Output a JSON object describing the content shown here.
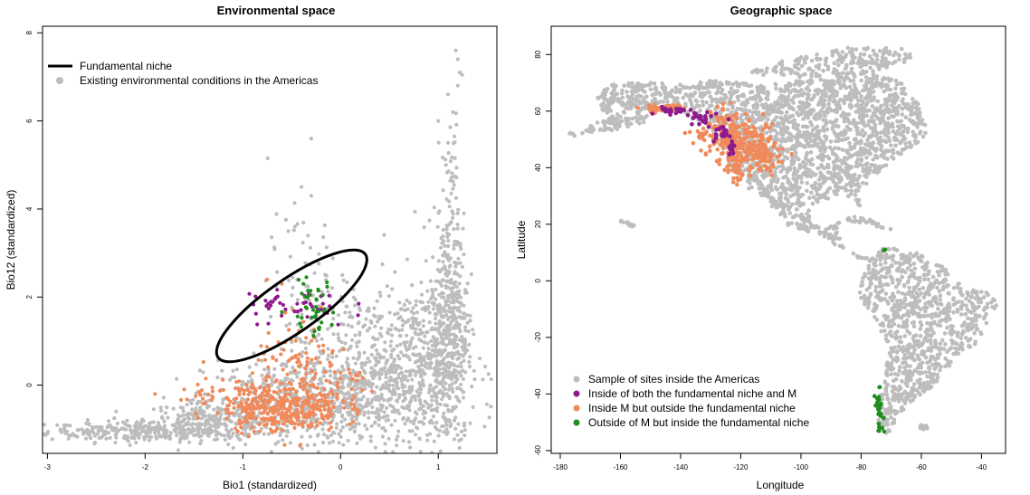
{
  "chart_data": [
    {
      "type": "scatter",
      "title": "Environmental space",
      "xlabel": "Bio1 (standardized)",
      "ylabel": "Bio12 (standardized)",
      "xlim": [
        -3.05,
        1.6
      ],
      "ylim": [
        -1.55,
        8.15
      ],
      "xticks": [
        -3,
        -2,
        -1,
        0,
        1
      ],
      "yticks": [
        0,
        2,
        4,
        6,
        8
      ],
      "colors": {
        "background": "#bdbdbd",
        "orange": "#f08a5b",
        "purple": "#8e1a8e",
        "green": "#1e8e1e",
        "ellipse": "#000000"
      },
      "legend": [
        {
          "label": "Fundamental niche",
          "kind": "line"
        },
        {
          "label": "Existing environmental conditions in the Americas",
          "kind": "point"
        }
      ],
      "ellipse": {
        "cx": -0.5,
        "cy": 1.8,
        "rx": 0.92,
        "ry": 0.57,
        "angle_deg": 35
      },
      "series": [
        {
          "color_key": "background",
          "clusters": [
            {
              "cx": -2.0,
              "cy": -1.05,
              "sx": 0.5,
              "sy": 0.12,
              "n": 260
            },
            {
              "cx": -1.3,
              "cy": -0.8,
              "sx": 0.35,
              "sy": 0.2,
              "n": 240
            },
            {
              "cx": -0.5,
              "cy": -0.4,
              "sx": 0.45,
              "sy": 0.5,
              "n": 380
            },
            {
              "cx": 0.3,
              "cy": -0.3,
              "sx": 0.45,
              "sy": 0.6,
              "n": 420
            },
            {
              "cx": 0.8,
              "cy": 0.5,
              "sx": 0.25,
              "sy": 0.9,
              "n": 300
            },
            {
              "cx": 1.1,
              "cy": 1.2,
              "sx": 0.1,
              "sy": 1.3,
              "n": 380
            },
            {
              "cx": 1.15,
              "cy": 3.5,
              "sx": 0.06,
              "sy": 1.3,
              "n": 90
            },
            {
              "cx": -0.35,
              "cy": 2.3,
              "sx": 0.2,
              "sy": 0.8,
              "n": 70
            },
            {
              "cx": 0.3,
              "cy": 0.9,
              "sx": 0.4,
              "sy": 0.7,
              "n": 220
            },
            {
              "cx": -2.6,
              "cy": -1.0,
              "sx": 0.15,
              "sy": 0.08,
              "n": 20
            }
          ],
          "extra": [
            [
              1.18,
              7.6
            ],
            [
              1.2,
              7.4
            ],
            [
              1.22,
              7.1
            ],
            [
              1.2,
              6.8
            ],
            [
              1.1,
              6.6
            ],
            [
              1.15,
              6.2
            ],
            [
              -0.3,
              5.6
            ],
            [
              -0.4,
              4.5
            ],
            [
              -0.3,
              4.3
            ],
            [
              1.0,
              6.0
            ],
            [
              1.1,
              5.5
            ],
            [
              -2.8,
              -1.05
            ]
          ]
        },
        {
          "color_key": "orange",
          "clusters": [
            {
              "cx": -0.6,
              "cy": -0.5,
              "sx": 0.3,
              "sy": 0.28,
              "n": 380
            },
            {
              "cx": -0.4,
              "cy": 0.4,
              "sx": 0.25,
              "sy": 0.5,
              "n": 90
            },
            {
              "cx": -1.3,
              "cy": -0.3,
              "sx": 0.25,
              "sy": 0.25,
              "n": 25
            },
            {
              "cx": 0.0,
              "cy": 0.0,
              "sx": 0.2,
              "sy": 0.3,
              "n": 30
            }
          ],
          "extra": [
            [
              -1.9,
              -0.2
            ],
            [
              -1.6,
              -0.1
            ],
            [
              -0.75,
              2.4
            ],
            [
              -0.6,
              2.3
            ]
          ]
        },
        {
          "color_key": "purple",
          "clusters": [
            {
              "cx": -0.45,
              "cy": 1.75,
              "sx": 0.28,
              "sy": 0.25,
              "n": 45
            }
          ],
          "extra": []
        },
        {
          "color_key": "green",
          "clusters": [
            {
              "cx": -0.3,
              "cy": 1.75,
              "sx": 0.12,
              "sy": 0.3,
              "n": 38
            }
          ],
          "extra": [
            [
              -0.35,
              2.45
            ],
            [
              -0.38,
              2.3
            ]
          ]
        }
      ]
    },
    {
      "type": "scatter",
      "title": "Geographic space",
      "xlabel": "Longitude",
      "ylabel": "Latitude",
      "xlim": [
        -183,
        -32
      ],
      "ylim": [
        -61,
        90
      ],
      "xticks": [
        -180,
        -160,
        -140,
        -120,
        -100,
        -80,
        -60,
        -40
      ],
      "yticks": [
        -60,
        -40,
        -20,
        0,
        20,
        40,
        60,
        80
      ],
      "colors": {
        "background": "#bdbdbd",
        "orange": "#f08a5b",
        "purple": "#8e1a8e",
        "green": "#1e8e1e"
      },
      "legend": [
        {
          "label": "Sample of sites inside the Americas",
          "color_key": "background"
        },
        {
          "label": "Inside of both the fundamental niche and M",
          "color_key": "purple"
        },
        {
          "label": "Inside M but outside the fundamental niche",
          "color_key": "orange"
        },
        {
          "label": "Outside of M but inside the fundamental niche",
          "color_key": "green"
        }
      ],
      "regions": [
        {
          "name": "North America",
          "polygon": [
            [
              -168,
              66
            ],
            [
              -162,
              70
            ],
            [
              -140,
              70
            ],
            [
              -128,
              71
            ],
            [
              -112,
              69
            ],
            [
              -95,
              72
            ],
            [
              -82,
              74
            ],
            [
              -70,
              72
            ],
            [
              -62,
              67
            ],
            [
              -60,
              58
            ],
            [
              -57,
              52
            ],
            [
              -66,
              45
            ],
            [
              -70,
              42
            ],
            [
              -76,
              37
            ],
            [
              -81,
              31
            ],
            [
              -80,
              26
            ],
            [
              -84,
              30
            ],
            [
              -91,
              29
            ],
            [
              -97,
              26
            ],
            [
              -97,
              21
            ],
            [
              -93,
              18
            ],
            [
              -87,
              21
            ],
            [
              -88,
              16
            ],
            [
              -83,
              10
            ],
            [
              -78,
              8
            ],
            [
              -80,
              7
            ],
            [
              -86,
              11
            ],
            [
              -92,
              15
            ],
            [
              -105,
              20
            ],
            [
              -112,
              29
            ],
            [
              -117,
              32
            ],
            [
              -124,
              41
            ],
            [
              -125,
              49
            ],
            [
              -133,
              56
            ],
            [
              -140,
              60
            ],
            [
              -150,
              61
            ],
            [
              -156,
              58
            ],
            [
              -162,
              55
            ],
            [
              -166,
              60
            ]
          ]
        },
        {
          "name": "Alaska Peninsula",
          "polygon": [
            [
              -165,
              57
            ],
            [
              -150,
              59
            ],
            [
              -152,
              56
            ],
            [
              -162,
              53
            ],
            [
              -176,
              51
            ],
            [
              -178,
              52
            ]
          ]
        },
        {
          "name": "Arctic islands",
          "polygon": [
            [
              -120,
              73
            ],
            [
              -100,
              80
            ],
            [
              -85,
              83
            ],
            [
              -65,
              82
            ],
            [
              -62,
              78
            ],
            [
              -80,
              73
            ],
            [
              -100,
              72
            ]
          ]
        },
        {
          "name": "South America",
          "polygon": [
            [
              -80,
              1
            ],
            [
              -77,
              8
            ],
            [
              -72,
              12
            ],
            [
              -62,
              10
            ],
            [
              -52,
              5
            ],
            [
              -50,
              0
            ],
            [
              -40,
              -3
            ],
            [
              -35,
              -6
            ],
            [
              -35,
              -10
            ],
            [
              -39,
              -16
            ],
            [
              -41,
              -22
            ],
            [
              -48,
              -26
            ],
            [
              -53,
              -34
            ],
            [
              -58,
              -39
            ],
            [
              -65,
              -44
            ],
            [
              -68,
              -50
            ],
            [
              -70,
              -54
            ],
            [
              -72,
              -55
            ],
            [
              -75,
              -50
            ],
            [
              -74,
              -42
            ],
            [
              -72,
              -32
            ],
            [
              -71,
              -22
            ],
            [
              -75,
              -15
            ],
            [
              -81,
              -5
            ]
          ]
        },
        {
          "name": "Caribbean",
          "polygon": [
            [
              -85,
              22
            ],
            [
              -80,
              23.5
            ],
            [
              -74,
              20
            ],
            [
              -68,
              18
            ],
            [
              -66,
              18
            ],
            [
              -72,
              18
            ],
            [
              -77,
              20
            ],
            [
              -84,
              21
            ]
          ]
        },
        {
          "name": "Hawaii",
          "polygon": [
            [
              -161,
              22
            ],
            [
              -155,
              20
            ],
            [
              -156,
              19
            ],
            [
              -160,
              21
            ]
          ]
        },
        {
          "name": "Falklands",
          "polygon": [
            [
              -61,
              -51
            ],
            [
              -58,
              -51
            ],
            [
              -58,
              -52.5
            ],
            [
              -61,
              -52.5
            ]
          ]
        }
      ],
      "region_points": 2200,
      "series": [
        {
          "color_key": "orange",
          "clusters": [
            {
              "cx": -125,
              "cy": 52,
              "sx": 5,
              "sy": 4,
              "n": 150
            },
            {
              "cx": -117,
              "cy": 47,
              "sx": 4,
              "sy": 4,
              "n": 140
            },
            {
              "cx": -112,
              "cy": 44,
              "sx": 2.5,
              "sy": 2.5,
              "n": 50
            },
            {
              "cx": -122,
              "cy": 40,
              "sx": 2,
              "sy": 3,
              "n": 45
            },
            {
              "cx": -145,
              "cy": 61,
              "sx": 4,
              "sy": 0.8,
              "n": 40
            }
          ],
          "extra": []
        },
        {
          "color_key": "purple",
          "clusters": [
            {
              "cx": -143,
              "cy": 60.3,
              "sx": 3,
              "sy": 0.7,
              "n": 25
            },
            {
              "cx": -133,
              "cy": 57,
              "sx": 2.5,
              "sy": 1.5,
              "n": 25
            },
            {
              "cx": -127,
              "cy": 52,
              "sx": 1.2,
              "sy": 1.5,
              "n": 20
            },
            {
              "cx": -123,
              "cy": 47.5,
              "sx": 0.8,
              "sy": 1.5,
              "n": 15
            }
          ],
          "extra": []
        },
        {
          "color_key": "green",
          "clusters": [
            {
              "cx": -74,
              "cy": -46,
              "sx": 0.7,
              "sy": 3.5,
              "n": 25
            }
          ],
          "extra": [
            [
              -72,
              11
            ],
            [
              -72.5,
              10.8
            ],
            [
              -73,
              -52
            ],
            [
              -74,
              -53
            ]
          ]
        }
      ]
    }
  ]
}
